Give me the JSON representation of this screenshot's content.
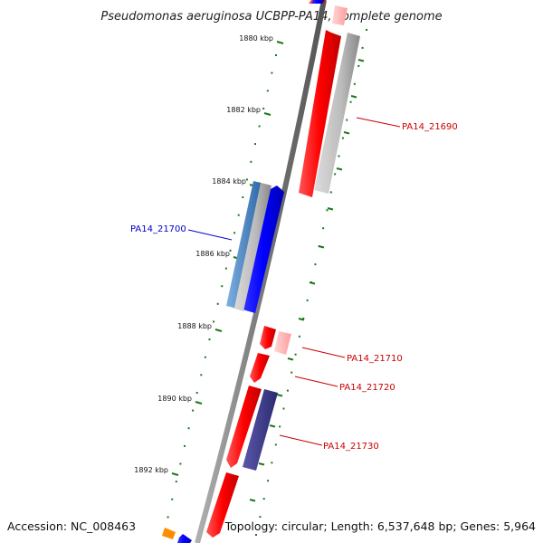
{
  "title": "Pseudomonas aeruginosa UCBPP-PA14, complete genome",
  "accession": "Accession: NC_008463",
  "topology": "Topology: circular; Length: 6,537,648 bp; Genes: 5,964",
  "colors": {
    "backbone": "#8a8a8a",
    "forward": "#ff0000",
    "reverse": "#0000ff",
    "tick": "#1a7a1a",
    "dots": "#1a7a1a",
    "gene_other": "#ff8c00",
    "cog_purple": "#3d3a8c",
    "cog_steel": "#4a7fb8",
    "cog_gray": "#b4b4b4",
    "cog_pink": "#ffb0b0"
  },
  "scale": {
    "unit": "kbp",
    "ticks": [
      {
        "label": "1880 kbp"
      },
      {
        "label": "1882 kbp"
      },
      {
        "label": "1884 kbp"
      },
      {
        "label": "1886 kbp"
      },
      {
        "label": "1888 kbp"
      },
      {
        "label": "1890 kbp"
      },
      {
        "label": "1892 kbp"
      }
    ]
  },
  "gene_labels": [
    {
      "name": "PA14_21690",
      "color": "#cc0000"
    },
    {
      "name": "PA14_21700",
      "color": "#0000cc"
    },
    {
      "name": "PA14_21710",
      "color": "#cc0000"
    },
    {
      "name": "PA14_21720",
      "color": "#cc0000"
    },
    {
      "name": "PA14_21730",
      "color": "#cc0000"
    }
  ]
}
